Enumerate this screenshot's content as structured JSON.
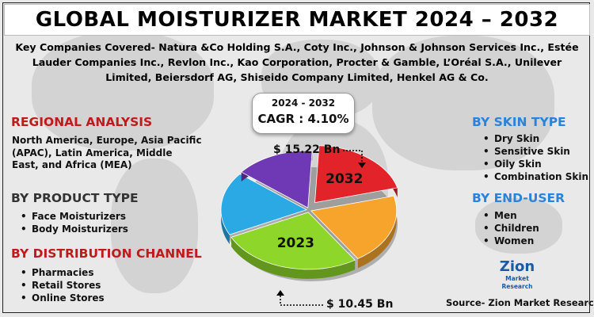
{
  "title": "GLOBAL MOISTURIZER MARKET 2024 – 2032",
  "companies": "Key Companies Covered- Natura &Co Holding S.A., Coty Inc., Johnson & Johnson Services Inc., Estée Lauder Companies Inc., Revlon Inc., Kao Corporation, Procter & Gamble, L’Oréal S.A., Unilever Limited, Beiersdorf AG, Shiseido Company Limited, Henkel AG & Co.",
  "cagr": {
    "years": "2024 - 2032",
    "value": "CAGR : 4.10%"
  },
  "regional": {
    "title": "REGIONAL ANALYSIS",
    "text": "North America, Europe, Asia Pacific (APAC), Latin America, Middle East, and Africa (MEA)"
  },
  "product_type": {
    "title": "BY PRODUCT TYPE",
    "items": [
      "Face Moisturizers",
      "Body Moisturizers"
    ]
  },
  "distribution": {
    "title": "BY DISTRIBUTION CHANNEL",
    "items": [
      "Pharmacies",
      "Retail Stores",
      "Online Stores"
    ]
  },
  "skin_type": {
    "title": "BY SKIN TYPE",
    "items": [
      "Dry Skin",
      "Sensitive Skin",
      "Oily Skin",
      "Combination Skin"
    ]
  },
  "end_user": {
    "title": "BY END-USER",
    "items": [
      "Men",
      "Children",
      "Women"
    ]
  },
  "source": "Source- Zion Market Research",
  "logo": {
    "name": "Zion",
    "sub": "Market Research"
  },
  "chart_data": {
    "type": "pie",
    "title": "",
    "slices": [
      {
        "label": "2032",
        "value": 20,
        "color": "#e2242a",
        "exploded": true
      },
      {
        "label": "",
        "value": 20,
        "color": "#f6a42c",
        "exploded": false
      },
      {
        "label": "2023",
        "value": 27,
        "color": "#8ed629",
        "exploded": false
      },
      {
        "label": "",
        "value": 18,
        "color": "#2aa9e4",
        "exploded": false
      },
      {
        "label": "",
        "value": 15,
        "color": "#6f38b4",
        "exploded": false
      }
    ],
    "annotations": [
      {
        "text": "$ 15.22 Bn",
        "target": "2032"
      },
      {
        "text": "$ 10.45 Bn",
        "target": "2023"
      }
    ]
  }
}
